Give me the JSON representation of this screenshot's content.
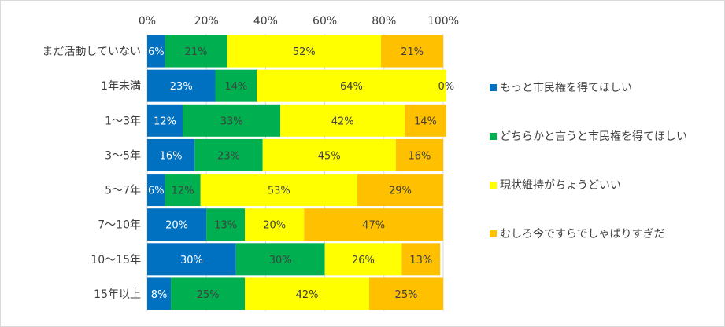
{
  "chart_data": {
    "type": "bar",
    "orientation": "horizontal",
    "stacked": true,
    "xlim": [
      0,
      100
    ],
    "ticks": [
      "0%",
      "20%",
      "40%",
      "60%",
      "80%",
      "100%"
    ],
    "grid": true,
    "legend_position": "right",
    "categories": [
      "まだ活動していない",
      "1年未満",
      "1～3年",
      "3～5年",
      "5～7年",
      "7～10年",
      "10～15年",
      "15年以上"
    ],
    "series": [
      {
        "name": "もっと市民権を得てほしい",
        "color": "#0070c0",
        "values": [
          6,
          23,
          12,
          16,
          6,
          20,
          30,
          8
        ]
      },
      {
        "name": "どちらかと言うと市民権を得てほしい",
        "color": "#00b050",
        "values": [
          21,
          14,
          33,
          23,
          12,
          13,
          30,
          25
        ]
      },
      {
        "name": "現状維持がちょうどいい",
        "color": "#ffff00",
        "values": [
          52,
          64,
          42,
          45,
          53,
          20,
          26,
          42
        ]
      },
      {
        "name": "むしろ今ですらでしゃばりすぎだ",
        "color": "#ffc000",
        "values": [
          21,
          0,
          14,
          16,
          29,
          47,
          13,
          25
        ]
      }
    ]
  }
}
